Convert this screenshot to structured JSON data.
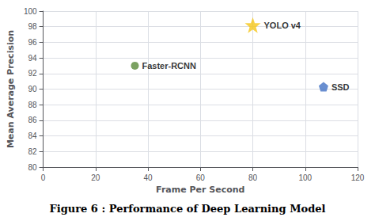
{
  "chart_data": {
    "type": "scatter",
    "caption": "Figure 6 : Performance of Deep Learning Model",
    "xlabel": "Frame Per Second",
    "ylabel": "Mean Average Precision",
    "series": [
      {
        "name": "Faster-RCNN",
        "color": "#5a8a3a",
        "marker": "circle",
        "x": [
          35
        ],
        "values": [
          93
        ]
      },
      {
        "name": "YOLO v4",
        "color": "#f5c518",
        "marker": "star",
        "x": [
          80
        ],
        "values": [
          98.2
        ]
      },
      {
        "name": "SSD",
        "color": "#4472c4",
        "marker": "pentagon",
        "x": [
          107
        ],
        "values": [
          90.3
        ]
      }
    ],
    "xlim": [
      0,
      120
    ],
    "ylim": [
      80,
      100
    ],
    "xticks": [
      0,
      20,
      40,
      60,
      80,
      100,
      120
    ],
    "yticks": [
      80,
      82,
      84,
      86,
      88,
      90,
      92,
      94,
      96,
      98,
      100
    ],
    "grid": true
  }
}
